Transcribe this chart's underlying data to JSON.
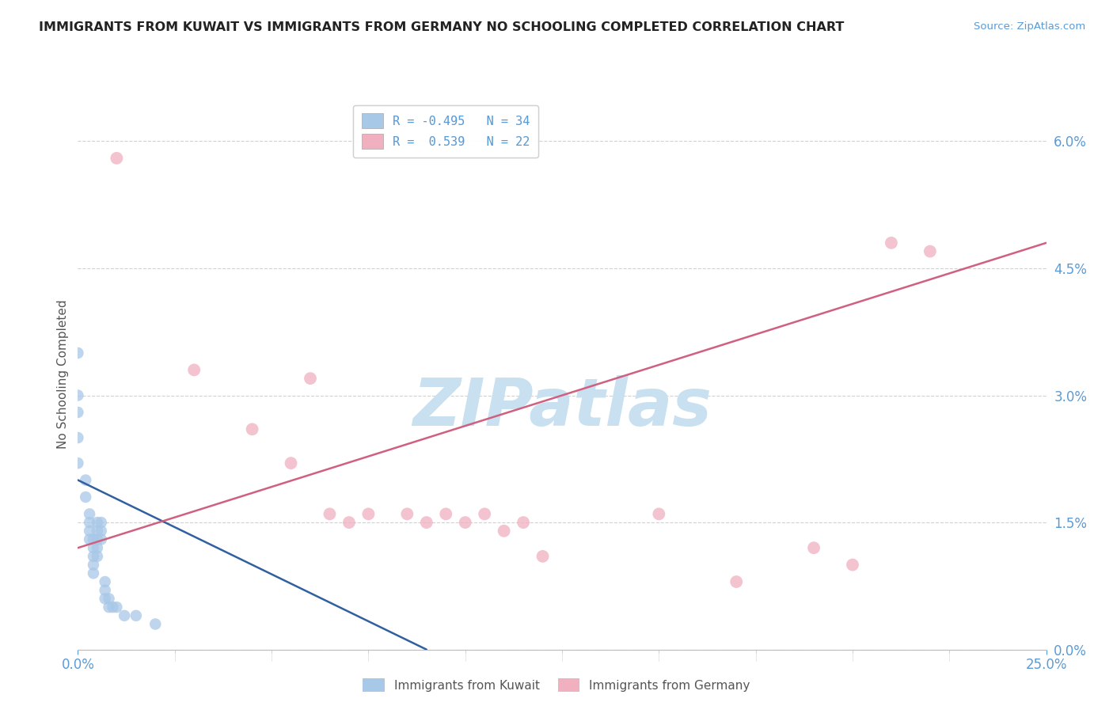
{
  "title": "IMMIGRANTS FROM KUWAIT VS IMMIGRANTS FROM GERMANY NO SCHOOLING COMPLETED CORRELATION CHART",
  "source_text": "Source: ZipAtlas.com",
  "ylabel": "No Schooling Completed",
  "xlim": [
    0.0,
    0.25
  ],
  "ylim": [
    0.0,
    0.065
  ],
  "background_color": "#ffffff",
  "grid_color": "#cccccc",
  "watermark_text": "ZIPatlas",
  "watermark_color": "#c8e0f0",
  "legend_r1": "R = -0.495",
  "legend_n1": "N = 34",
  "legend_r2": "R =  0.539",
  "legend_n2": "N = 22",
  "blue_color": "#a8c8e8",
  "pink_color": "#f0b0c0",
  "blue_line_color": "#3060a0",
  "pink_line_color": "#d06080",
  "kuwait_x": [
    0.0,
    0.0,
    0.0,
    0.0,
    0.0,
    0.002,
    0.002,
    0.003,
    0.003,
    0.003,
    0.003,
    0.004,
    0.004,
    0.004,
    0.004,
    0.004,
    0.005,
    0.005,
    0.005,
    0.005,
    0.005,
    0.006,
    0.006,
    0.006,
    0.007,
    0.007,
    0.007,
    0.008,
    0.008,
    0.009,
    0.01,
    0.012,
    0.015,
    0.02
  ],
  "kuwait_y": [
    0.035,
    0.03,
    0.028,
    0.025,
    0.022,
    0.02,
    0.018,
    0.016,
    0.015,
    0.014,
    0.013,
    0.013,
    0.012,
    0.011,
    0.01,
    0.009,
    0.015,
    0.014,
    0.013,
    0.012,
    0.011,
    0.015,
    0.014,
    0.013,
    0.008,
    0.007,
    0.006,
    0.006,
    0.005,
    0.005,
    0.005,
    0.004,
    0.004,
    0.003
  ],
  "germany_x": [
    0.01,
    0.03,
    0.045,
    0.055,
    0.06,
    0.065,
    0.07,
    0.075,
    0.085,
    0.09,
    0.095,
    0.1,
    0.105,
    0.11,
    0.115,
    0.12,
    0.15,
    0.17,
    0.19,
    0.2,
    0.21,
    0.22
  ],
  "germany_y": [
    0.058,
    0.033,
    0.026,
    0.022,
    0.032,
    0.016,
    0.015,
    0.016,
    0.016,
    0.015,
    0.016,
    0.015,
    0.016,
    0.014,
    0.015,
    0.011,
    0.016,
    0.008,
    0.012,
    0.01,
    0.048,
    0.047
  ],
  "blue_line_x": [
    0.0,
    0.09
  ],
  "blue_line_y": [
    0.02,
    0.0
  ],
  "pink_line_x": [
    0.0,
    0.25
  ],
  "pink_line_y": [
    0.012,
    0.048
  ],
  "yticks": [
    0.0,
    0.015,
    0.03,
    0.045,
    0.06
  ],
  "ytick_labels": [
    "0.0%",
    "1.5%",
    "3.0%",
    "4.5%",
    "6.0%"
  ],
  "xticks": [
    0.0,
    0.25
  ],
  "xtick_labels": [
    "0.0%",
    "25.0%"
  ]
}
